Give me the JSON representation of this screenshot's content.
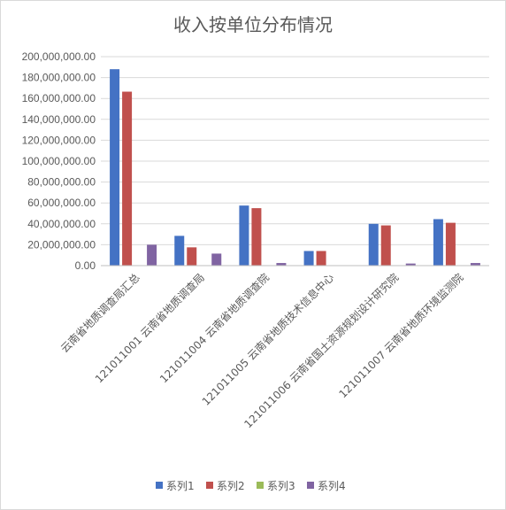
{
  "chart_data": {
    "type": "bar",
    "title": "收入按单位分布情况",
    "xlabel": "",
    "ylabel": "",
    "ylim": [
      0,
      200000000
    ],
    "yticks": [
      0,
      20000000,
      40000000,
      60000000,
      80000000,
      100000000,
      120000000,
      140000000,
      160000000,
      180000000,
      200000000
    ],
    "ytick_labels": [
      "0.00",
      "20,000,000.00",
      "40,000,000.00",
      "60,000,000.00",
      "80,000,000.00",
      "100,000,000.00",
      "120,000,000.00",
      "140,000,000.00",
      "160,000,000.00",
      "180,000,000.00",
      "200,000,000.00"
    ],
    "grid": true,
    "legend_position": "bottom",
    "categories": [
      "云南省地质调查局汇总",
      "121011001 云南省地质调查局",
      "121011004 云南省地质调查院",
      "121011005 云南省地质技术信息中心",
      "121011006 云南省国土资源规划设计研究院",
      "121011007 云南省地质环境监测院"
    ],
    "series": [
      {
        "name": "系列1",
        "color": "#4472c4",
        "values": [
          188000000,
          28500000,
          57500000,
          14000000,
          40000000,
          44500000
        ]
      },
      {
        "name": "系列2",
        "color": "#c0504d",
        "values": [
          166500000,
          17500000,
          55000000,
          14000000,
          38500000,
          41000000
        ]
      },
      {
        "name": "系列3",
        "color": "#9bbb59",
        "values": [
          0,
          0,
          0,
          0,
          0,
          0
        ]
      },
      {
        "name": "系列4",
        "color": "#8064a2",
        "values": [
          20000000,
          11500000,
          2500000,
          0,
          2000000,
          2500000
        ]
      }
    ]
  }
}
